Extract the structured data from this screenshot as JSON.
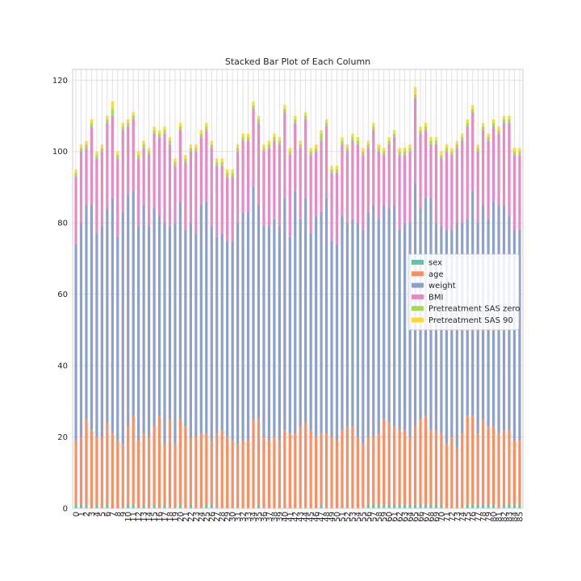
{
  "chart_data": {
    "type": "bar",
    "stacked": true,
    "title": "Stacked Bar Plot of Each Column",
    "xlabel": "",
    "ylabel": "",
    "ylim": [
      0,
      123
    ],
    "yticks": [
      0,
      20,
      40,
      60,
      80,
      100,
      120
    ],
    "grid": true,
    "legend_position": "center-right",
    "categories": [
      "0",
      "1",
      "2",
      "3",
      "4",
      "5",
      "6",
      "7",
      "8",
      "9",
      "10",
      "11",
      "12",
      "13",
      "14",
      "15",
      "16",
      "17",
      "18",
      "19",
      "20",
      "21",
      "22",
      "23",
      "24",
      "25",
      "26",
      "27",
      "28",
      "29",
      "30",
      "31",
      "32",
      "33",
      "34",
      "35",
      "36",
      "37",
      "38",
      "39",
      "40",
      "41",
      "42",
      "43",
      "44",
      "45",
      "46",
      "47",
      "48",
      "49",
      "50",
      "51",
      "52",
      "53",
      "54",
      "55",
      "56",
      "57",
      "58",
      "59",
      "60",
      "61",
      "62",
      "63",
      "64",
      "65",
      "66",
      "67",
      "68",
      "69",
      "70",
      "71",
      "72",
      "73",
      "74",
      "75",
      "76",
      "77",
      "78",
      "79",
      "80",
      "81",
      "82",
      "83",
      "84",
      "85"
    ],
    "series": [
      {
        "name": "sex",
        "color": "#66c2a5",
        "values": [
          1,
          1,
          1,
          0,
          1,
          0,
          1,
          0,
          0,
          0,
          1,
          1,
          0,
          1,
          0,
          1,
          0,
          1,
          0,
          0,
          1,
          0,
          1,
          0,
          0,
          1,
          1,
          0,
          0,
          0,
          0,
          0,
          0,
          0,
          0,
          1,
          0,
          0,
          0,
          0,
          0,
          0,
          0,
          0,
          0,
          0,
          0,
          1,
          0,
          0,
          0,
          0,
          0,
          0,
          0,
          0,
          1,
          1,
          1,
          1,
          1,
          1,
          1,
          1,
          1,
          1,
          1,
          1,
          1,
          1,
          1,
          0,
          0,
          0,
          0,
          1,
          1,
          1,
          1,
          1,
          1,
          0,
          1,
          1,
          1,
          1
        ]
      },
      {
        "name": "age",
        "color": "#fc8d62",
        "values": [
          18,
          19,
          24,
          22,
          19,
          20,
          23,
          21,
          19,
          18,
          22,
          25,
          19,
          20,
          20,
          22,
          26,
          17,
          25,
          18,
          24,
          23,
          19,
          20,
          21,
          20,
          18,
          21,
          22,
          20,
          19,
          18,
          19,
          19,
          25,
          24,
          20,
          19,
          20,
          19,
          22,
          21,
          21,
          23,
          24,
          22,
          20,
          20,
          21,
          20,
          19,
          22,
          23,
          23,
          20,
          18,
          19,
          19,
          20,
          24,
          23,
          22,
          21,
          21,
          19,
          22,
          24,
          25,
          21,
          21,
          20,
          18,
          20,
          17,
          21,
          25,
          25,
          20,
          24,
          22,
          22,
          21,
          21,
          21,
          18,
          18
        ]
      },
      {
        "name": "weight",
        "color": "#8da0cb",
        "values": [
          55,
          60,
          60,
          63,
          57,
          59,
          60,
          66,
          57,
          65,
          65,
          63,
          60,
          64,
          59,
          61,
          56,
          62,
          54,
          62,
          61,
          55,
          60,
          57,
          64,
          65,
          60,
          55,
          55,
          55,
          56,
          62,
          64,
          64,
          65,
          60,
          59,
          60,
          61,
          60,
          65,
          55,
          68,
          58,
          63,
          55,
          62,
          62,
          66,
          55,
          55,
          60,
          57,
          58,
          60,
          60,
          63,
          65,
          60,
          60,
          60,
          62,
          56,
          58,
          60,
          68,
          59,
          61,
          65,
          58,
          58,
          60,
          58,
          63,
          59,
          55,
          63,
          59,
          60,
          58,
          63,
          64,
          63,
          60,
          59,
          59
        ]
      },
      {
        "name": "BMI",
        "color": "#e78ac3",
        "values": [
          19,
          20,
          16,
          22,
          21,
          21,
          24,
          23,
          22,
          23,
          19,
          20,
          19,
          16,
          20,
          21,
          22,
          25,
          23,
          16,
          20,
          19,
          20,
          23,
          19,
          20,
          22,
          20,
          19,
          18,
          18,
          20,
          20,
          20,
          22,
          23,
          21,
          22,
          22,
          23,
          24,
          23,
          19,
          20,
          22,
          22,
          18,
          20,
          20,
          19,
          20,
          20,
          20,
          22,
          22,
          21,
          18,
          21,
          19,
          14,
          18,
          19,
          21,
          19,
          20,
          24,
          21,
          19,
          15,
          22,
          19,
          22,
          21,
          21,
          23,
          26,
          22,
          20,
          21,
          22,
          21,
          20,
          23,
          26,
          21,
          21
        ]
      },
      {
        "name": "Pretreatment SAS zero",
        "color": "#a6d854",
        "values": [
          1,
          1,
          1,
          1,
          1,
          1,
          1,
          2,
          1,
          1,
          1,
          1,
          1,
          1,
          1,
          1,
          1,
          1,
          1,
          1,
          1,
          1,
          1,
          1,
          1,
          1,
          1,
          1,
          1,
          1,
          1,
          1,
          1,
          1,
          1,
          1,
          1,
          1,
          1,
          1,
          1,
          1,
          1,
          1,
          1,
          1,
          1,
          2,
          1,
          1,
          1,
          1,
          1,
          1,
          1,
          1,
          1,
          1,
          1,
          1,
          1,
          1,
          1,
          1,
          1,
          1,
          1,
          1,
          1,
          1,
          1,
          1,
          1,
          1,
          1,
          1,
          1,
          1,
          1,
          1,
          1,
          1,
          1,
          1,
          1,
          1
        ]
      },
      {
        "name": "Pretreatment SAS 90",
        "color": "#ffd92f",
        "values": [
          1,
          1,
          1,
          1,
          1,
          1,
          1,
          2,
          1,
          1,
          1,
          1,
          1,
          1,
          1,
          1,
          1,
          1,
          1,
          1,
          1,
          1,
          1,
          1,
          1,
          1,
          1,
          1,
          1,
          1,
          1,
          1,
          1,
          1,
          1,
          1,
          1,
          1,
          1,
          1,
          1,
          1,
          1,
          1,
          1,
          1,
          1,
          1,
          1,
          1,
          1,
          1,
          1,
          1,
          1,
          1,
          1,
          1,
          1,
          1,
          1,
          1,
          1,
          1,
          1,
          2,
          1,
          1,
          1,
          1,
          1,
          1,
          1,
          1,
          1,
          1,
          1,
          1,
          1,
          1,
          1,
          1,
          1,
          1,
          1,
          1
        ]
      }
    ]
  }
}
